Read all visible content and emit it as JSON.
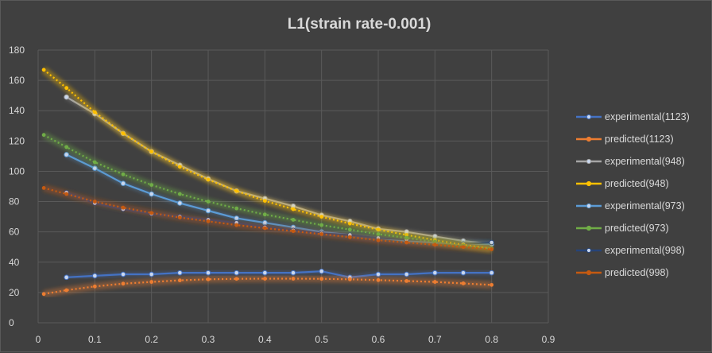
{
  "chart_data": {
    "type": "line",
    "title": "L1(strain rate-0.001)",
    "xlabel": "",
    "ylabel": "",
    "xlim": [
      0,
      0.9
    ],
    "ylim": [
      0,
      180
    ],
    "x_ticks": [
      "0",
      "0.1",
      "0.2",
      "0.3",
      "0.4",
      "0.5",
      "0.6",
      "0.7",
      "0.8",
      "0.9"
    ],
    "y_ticks": [
      "0",
      "20",
      "40",
      "60",
      "80",
      "100",
      "120",
      "140",
      "160",
      "180"
    ],
    "grid": true,
    "legend_position": "right",
    "series": [
      {
        "name": "experimental(1123)",
        "color": "#4472c4",
        "style": "experimental",
        "x": [
          0.05,
          0.1,
          0.15,
          0.2,
          0.25,
          0.3,
          0.35,
          0.4,
          0.45,
          0.5,
          0.55,
          0.6,
          0.65,
          0.7,
          0.75,
          0.8
        ],
        "y": [
          30,
          31,
          32,
          32,
          33,
          33,
          33,
          33,
          33,
          34,
          30,
          32,
          32,
          33,
          33,
          33
        ]
      },
      {
        "name": "predicted(1123)",
        "color": "#ed7d31",
        "style": "predicted",
        "x": [
          0.01,
          0.05,
          0.1,
          0.15,
          0.2,
          0.25,
          0.3,
          0.35,
          0.4,
          0.45,
          0.5,
          0.55,
          0.6,
          0.65,
          0.7,
          0.75,
          0.8
        ],
        "y": [
          19,
          21.5,
          24,
          25.8,
          27,
          28,
          28.7,
          29,
          29.1,
          29.1,
          29,
          28.7,
          28.2,
          27.6,
          27,
          26,
          25
        ]
      },
      {
        "name": "experimental(948)",
        "color": "#a5a5a5",
        "style": "experimental",
        "x": [
          0.05,
          0.1,
          0.15,
          0.2,
          0.25,
          0.3,
          0.35,
          0.4,
          0.45,
          0.5,
          0.55,
          0.6,
          0.65,
          0.7,
          0.75,
          0.8
        ],
        "y": [
          149,
          138,
          125,
          113,
          104,
          95,
          87,
          82,
          77,
          71,
          67,
          62,
          60,
          57,
          54,
          52
        ]
      },
      {
        "name": "predicted(948)",
        "color": "#ffc000",
        "style": "predicted",
        "x": [
          0.01,
          0.05,
          0.1,
          0.15,
          0.2,
          0.25,
          0.3,
          0.35,
          0.4,
          0.45,
          0.5,
          0.55,
          0.6,
          0.65,
          0.7,
          0.75,
          0.8
        ],
        "y": [
          167,
          155,
          139,
          125,
          113,
          103,
          94.5,
          87,
          80.5,
          75,
          70,
          65.5,
          61.5,
          58,
          54.5,
          51.5,
          49
        ]
      },
      {
        "name": "experimental(973)",
        "color": "#5b9bd5",
        "style": "experimental",
        "x": [
          0.05,
          0.1,
          0.15,
          0.2,
          0.25,
          0.3,
          0.35,
          0.4,
          0.45,
          0.5,
          0.55,
          0.6,
          0.65,
          0.7,
          0.75,
          0.8
        ],
        "y": [
          111,
          102,
          92,
          85,
          79,
          74,
          69,
          66,
          63,
          60,
          58,
          56,
          54,
          53,
          52,
          52
        ]
      },
      {
        "name": "predicted(973)",
        "color": "#70ad47",
        "style": "predicted",
        "x": [
          0.01,
          0.05,
          0.1,
          0.15,
          0.2,
          0.25,
          0.3,
          0.35,
          0.4,
          0.45,
          0.5,
          0.55,
          0.6,
          0.65,
          0.7,
          0.75,
          0.8
        ],
        "y": [
          124,
          116,
          106,
          98,
          91,
          85,
          80,
          75.5,
          71.5,
          68,
          64.5,
          61.5,
          58.5,
          56,
          53.5,
          51,
          49
        ]
      },
      {
        "name": "experimental(998)",
        "color": "#264478",
        "style": "experimental",
        "x": [
          0.05,
          0.1,
          0.15,
          0.2,
          0.25,
          0.3,
          0.35,
          0.4,
          0.45,
          0.5,
          0.55,
          0.6,
          0.65,
          0.7,
          0.75,
          0.8
        ],
        "y": [
          86,
          79,
          75,
          72,
          70,
          68,
          66,
          63,
          61,
          59,
          58,
          56,
          55,
          54,
          52,
          53
        ]
      },
      {
        "name": "predicted(998)",
        "color": "#c55a11",
        "style": "predicted",
        "x": [
          0.01,
          0.05,
          0.1,
          0.15,
          0.2,
          0.25,
          0.3,
          0.35,
          0.4,
          0.45,
          0.5,
          0.55,
          0.6,
          0.65,
          0.7,
          0.75,
          0.8
        ],
        "y": [
          89,
          85,
          80,
          76,
          72.5,
          69.5,
          67,
          64.5,
          62.5,
          60.5,
          58.5,
          56.5,
          54.5,
          53,
          51.5,
          50,
          48.5
        ]
      }
    ]
  }
}
